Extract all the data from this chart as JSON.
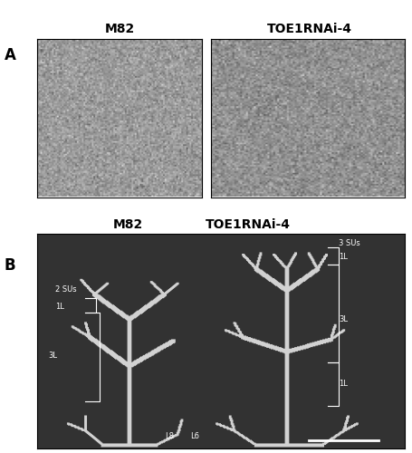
{
  "fig_width": 4.56,
  "fig_height": 5.0,
  "dpi": 100,
  "bg_color": "#ffffff",
  "panel_A_label": "A",
  "panel_B_label": "B",
  "col1_title": "M82",
  "col2_title": "TOE1RNAi-4",
  "panel_A_gray1": 155,
  "panel_A_gray2": 145,
  "panel_B_bg_gray": 50,
  "panel_B_title_M82": "M82",
  "panel_B_title_TOE1": "TOE1RNAi-4",
  "label_2SUs": "2 SUs",
  "label_1L_left": "1L",
  "label_3L_left": "3L",
  "label_3SUs": "3 SUs",
  "label_1L_right_top": "1L",
  "label_3L_right": "3L",
  "label_1L_right_bot": "1L",
  "label_L8": "L8",
  "label_L6": "L6",
  "fontsize_title": 10,
  "fontsize_label": 12,
  "fontsize_annot": 6
}
